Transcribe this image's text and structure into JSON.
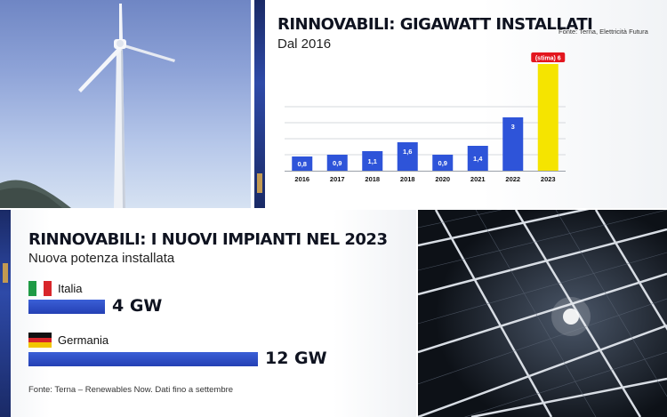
{
  "colors": {
    "bar": "#2e54d9",
    "highlight": "#f5e400",
    "estimate_badge": "#e3161e",
    "title": "#0f1320"
  },
  "chart_data": [
    {
      "type": "bar",
      "title": "RINNOVABILI: GIGAWATT INSTALLATI",
      "subtitle": "Dal 2016",
      "source": "Fonte: Terna, Elettricità Futura",
      "categories": [
        "2016",
        "2017",
        "2018",
        "2018",
        "2020",
        "2021",
        "2022",
        "2023"
      ],
      "value_labels": [
        "0,8",
        "0,9",
        "1,1",
        "1,6",
        "0,9",
        "1,4",
        "3",
        "6"
      ],
      "values": [
        0.8,
        0.9,
        1.1,
        1.6,
        0.9,
        1.4,
        3,
        6
      ],
      "estimate_index": 7,
      "estimate_label": "(stima) 6",
      "ylim": [
        0,
        6
      ],
      "grid": true
    },
    {
      "type": "bar",
      "orientation": "horizontal",
      "title": "RINNOVABILI: I NUOVI IMPIANTI NEL 2023",
      "subtitle": "Nuova potenza installata",
      "source": "Fonte: Terna – Renewables Now. Dati fino a settembre",
      "categories": [
        "Italia",
        "Germania"
      ],
      "values": [
        4,
        12
      ],
      "value_labels": [
        "4 GW",
        "12 GW"
      ],
      "flags": [
        "flag-italy-icon",
        "flag-germany-icon"
      ]
    }
  ]
}
